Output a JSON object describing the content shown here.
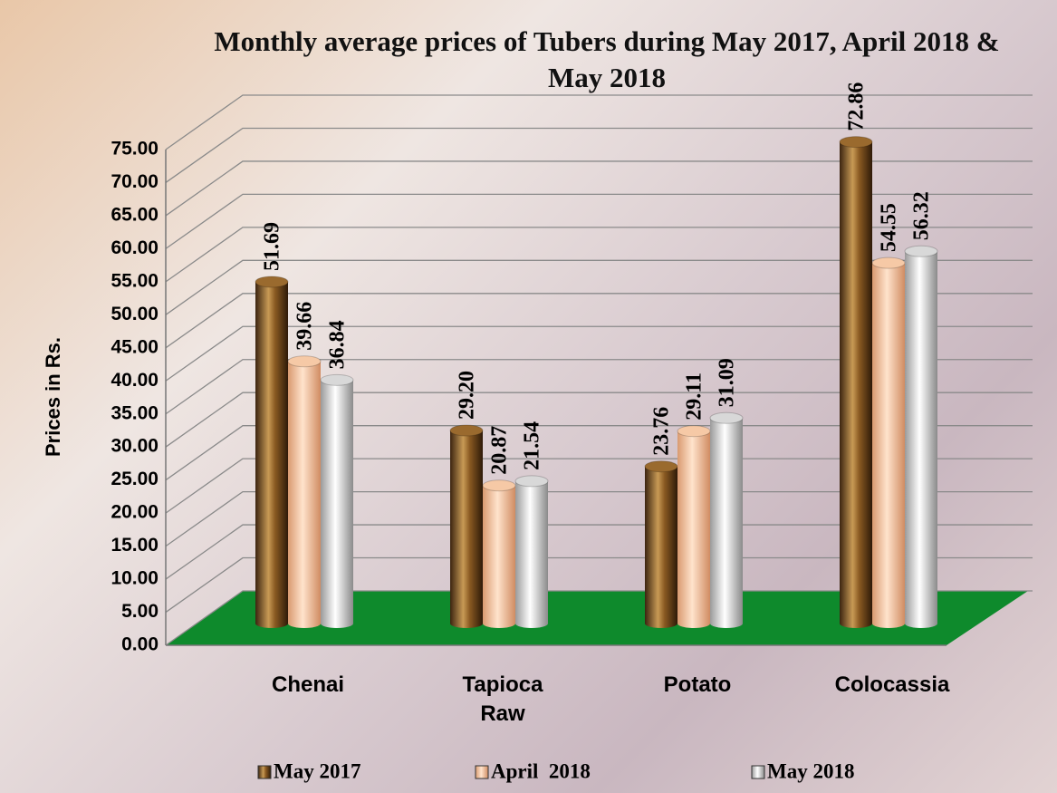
{
  "chart_data": {
    "type": "bar",
    "title": "Monthly average prices of Tubers during  May 2017, April 2018 & May 2018",
    "y_label": "Prices in Rs.",
    "categories": [
      "Chenai",
      "Tapioca Raw",
      "Potato",
      "Colocassia"
    ],
    "series": [
      {
        "name": "May 2017",
        "color": "#9a6a2e",
        "values": [
          51.69,
          29.2,
          23.76,
          72.86
        ],
        "value_labels": [
          "51.69",
          "29.20",
          "23.76",
          "72.86"
        ]
      },
      {
        "name": "April  2018",
        "color": "#f6c9a6",
        "values": [
          39.66,
          20.87,
          29.11,
          54.55
        ],
        "value_labels": [
          "39.66",
          "20.87",
          "29.11",
          "54.55"
        ]
      },
      {
        "name": "May 2018",
        "color": "#d8d8d8",
        "values": [
          36.84,
          21.54,
          31.09,
          56.32
        ],
        "value_labels": [
          "36.84",
          "21.54",
          "31.09",
          "56.32"
        ]
      }
    ],
    "ylim": [
      0,
      75
    ],
    "yticks": [
      {
        "value": 0,
        "label": "0.00"
      },
      {
        "value": 5,
        "label": "5.00"
      },
      {
        "value": 10,
        "label": "10.00"
      },
      {
        "value": 15,
        "label": "15.00"
      },
      {
        "value": 20,
        "label": "20.00"
      },
      {
        "value": 25,
        "label": "25.00"
      },
      {
        "value": 30,
        "label": "30.00"
      },
      {
        "value": 35,
        "label": "35.00"
      },
      {
        "value": 40,
        "label": "40.00"
      },
      {
        "value": 45,
        "label": "45.00"
      },
      {
        "value": 50,
        "label": "50.00"
      },
      {
        "value": 55,
        "label": "55.00"
      },
      {
        "value": 60,
        "label": "60.00"
      },
      {
        "value": 65,
        "label": "65.00"
      },
      {
        "value": 70,
        "label": "70.00"
      },
      {
        "value": 75,
        "label": "75.00"
      }
    ],
    "grid": true,
    "floor_color": "#0e8a2c"
  }
}
